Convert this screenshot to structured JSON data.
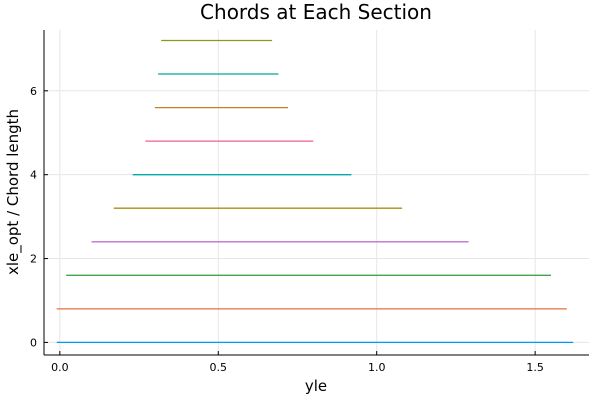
{
  "chart_data": {
    "type": "line",
    "title": "Chords at Each Section",
    "xlabel": "yle",
    "ylabel": "xle_opt / Chord length",
    "xlim": [
      -0.05,
      1.67
    ],
    "ylim": [
      -0.3,
      7.45
    ],
    "x_ticks": [
      0.0,
      0.5,
      1.0,
      1.5
    ],
    "x_tick_labels": [
      "0.0",
      "0.5",
      "1.0",
      "1.5"
    ],
    "y_ticks": [
      0,
      2,
      4,
      6
    ],
    "y_tick_labels": [
      "0",
      "2",
      "4",
      "6"
    ],
    "grid": true,
    "legend": "none",
    "series": [
      {
        "color": "#009AFA",
        "x": [
          -0.01,
          1.62
        ],
        "y": [
          0.0,
          0.0
        ]
      },
      {
        "color": "#E36F47",
        "x": [
          -0.01,
          1.6
        ],
        "y": [
          0.8,
          0.8
        ]
      },
      {
        "color": "#3EA44E",
        "x": [
          0.02,
          1.55
        ],
        "y": [
          1.6,
          1.6
        ]
      },
      {
        "color": "#C271D2",
        "x": [
          0.1,
          1.29
        ],
        "y": [
          2.4,
          2.4
        ]
      },
      {
        "color": "#AC8D18",
        "x": [
          0.17,
          1.08
        ],
        "y": [
          3.2,
          3.2
        ]
      },
      {
        "color": "#00A9AD",
        "x": [
          0.23,
          0.92
        ],
        "y": [
          4.0,
          4.0
        ]
      },
      {
        "color": "#ED5E93",
        "x": [
          0.27,
          0.8
        ],
        "y": [
          4.8,
          4.8
        ]
      },
      {
        "color": "#C68125",
        "x": [
          0.3,
          0.72
        ],
        "y": [
          5.6,
          5.6
        ]
      },
      {
        "color": "#00A98D",
        "x": [
          0.31,
          0.69
        ],
        "y": [
          6.4,
          6.4
        ]
      },
      {
        "color": "#8E971D",
        "x": [
          0.32,
          0.67
        ],
        "y": [
          7.2,
          7.2
        ]
      }
    ]
  }
}
